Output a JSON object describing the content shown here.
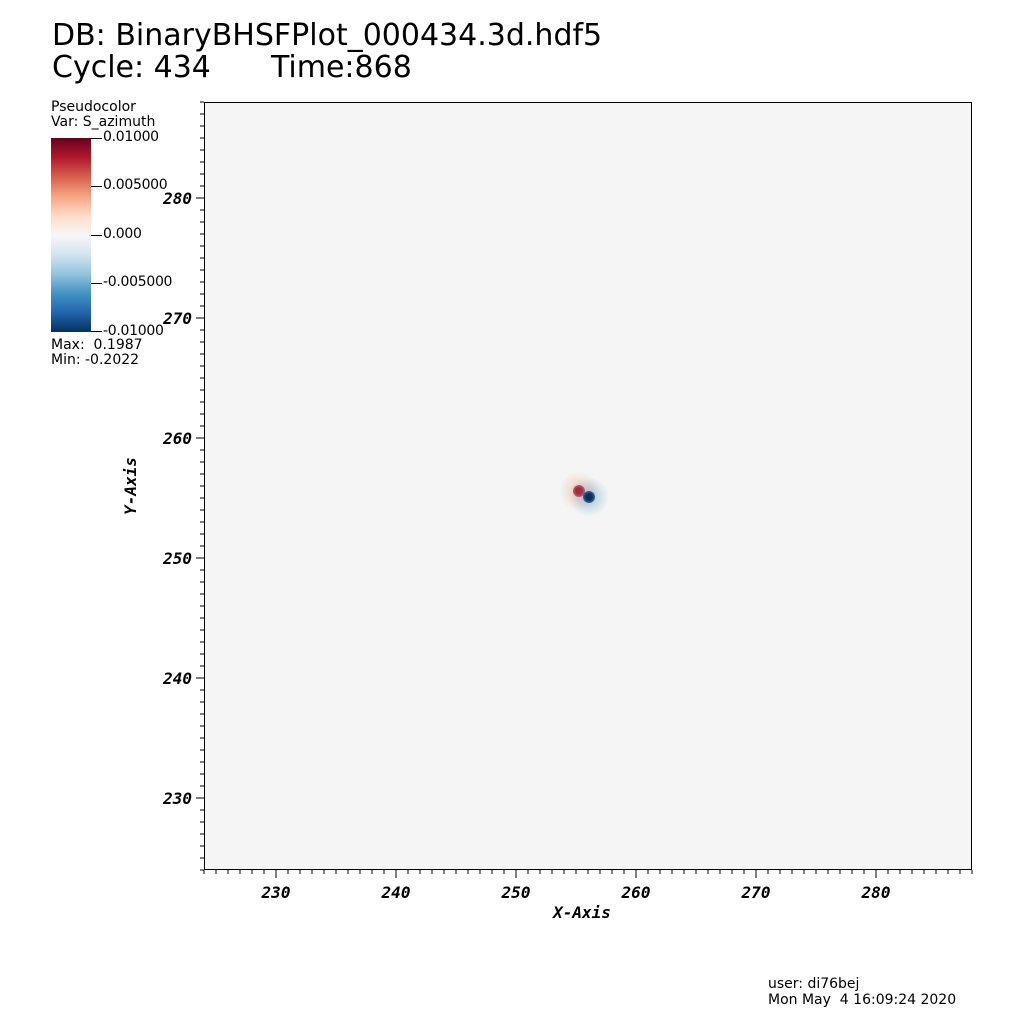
{
  "header": {
    "db_title": "DB: BinaryBHSFPlot_000434.3d.hdf5",
    "cycle": "Cycle: 434",
    "time": "Time:868"
  },
  "legend": {
    "plot_type": "Pseudocolor",
    "variable": "Var: S_azimuth",
    "colorbar_labels": [
      "0.01000",
      "0.005000",
      "0.000",
      "-0.005000",
      "-0.01000"
    ],
    "max": "Max:  0.1987",
    "min": "Min: -0.2022",
    "colormap": [
      "#67001f",
      "#b2182b",
      "#d6604d",
      "#f4a582",
      "#fddbc7",
      "#f7f7f7",
      "#d1e5f0",
      "#92c5de",
      "#4393c3",
      "#2166ac",
      "#053061"
    ]
  },
  "footer": {
    "user": "user: di76bej",
    "date": "Mon May  4 16:09:24 2020"
  },
  "chart_data": {
    "type": "heatmap",
    "title": "DB: BinaryBHSFPlot_000434.3d.hdf5",
    "xlabel": "X-Axis",
    "ylabel": "Y-Axis",
    "xlim": [
      224,
      288
    ],
    "ylim": [
      224,
      288
    ],
    "xticks": [
      230,
      240,
      250,
      260,
      270,
      280
    ],
    "yticks": [
      230,
      240,
      250,
      260,
      270,
      280
    ],
    "x_tick_labels": [
      "230",
      "240",
      "250",
      "260",
      "270",
      "280"
    ],
    "y_tick_labels": [
      "230",
      "240",
      "250",
      "260",
      "270",
      "280"
    ],
    "background_value": 0.0,
    "features": [
      {
        "x": 255.2,
        "y": 255.7,
        "sign": "positive",
        "peak": 0.1987
      },
      {
        "x": 256.0,
        "y": 255.2,
        "sign": "negative",
        "peak": -0.2022
      }
    ]
  }
}
